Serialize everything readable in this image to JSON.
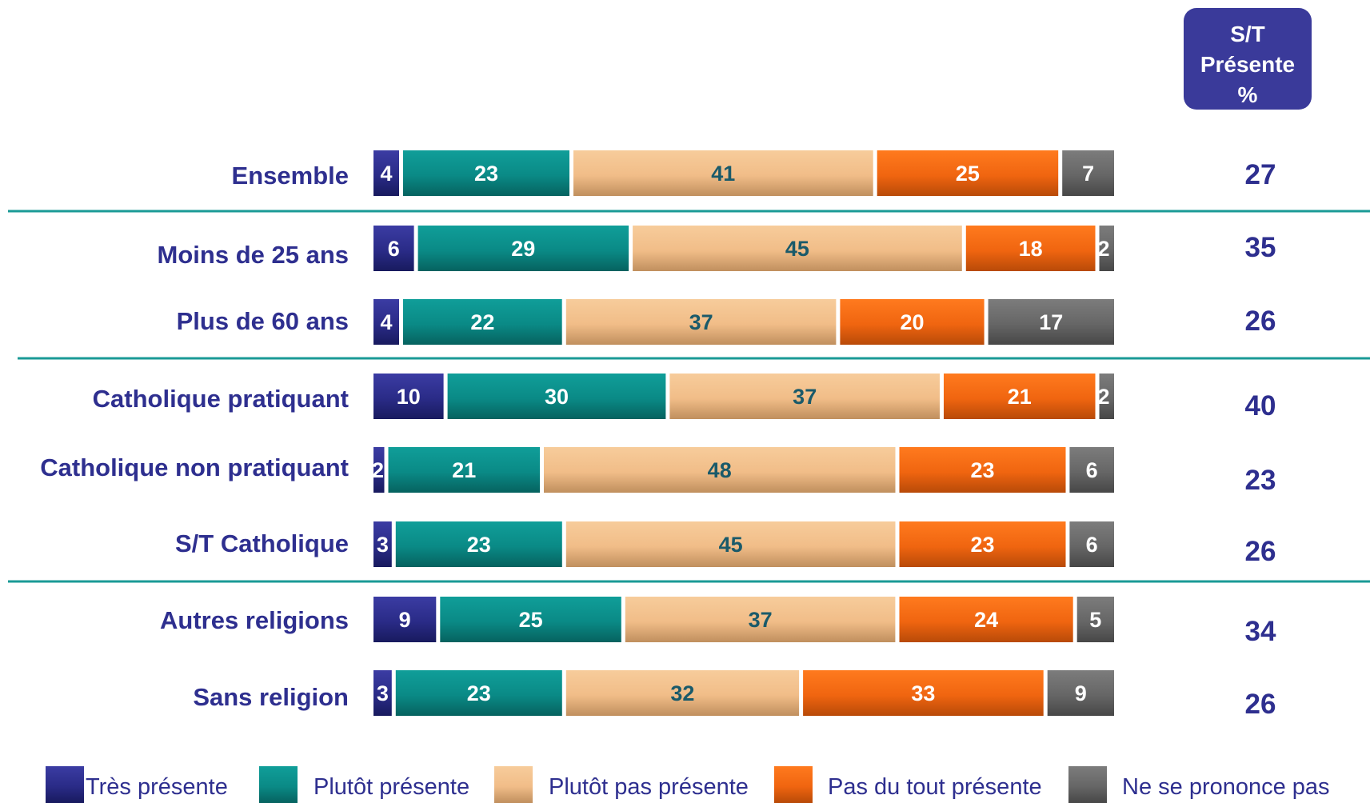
{
  "chart_data": {
    "type": "bar",
    "orientation": "horizontal",
    "stacked": true,
    "xlim": [
      0,
      100
    ],
    "categories": [
      "Ensemble",
      "Moins de 25 ans",
      "Plus de 60 ans",
      "Catholique pratiquant",
      "Catholique non pratiquant",
      "S/T Catholique",
      "Autres religions",
      "Sans religion"
    ],
    "series": [
      {
        "name": "Très présente",
        "color": "#2e2f8f",
        "values": [
          4,
          6,
          4,
          10,
          2,
          3,
          9,
          3
        ]
      },
      {
        "name": "Plutôt présente",
        "color": "#0a8a86",
        "values": [
          23,
          29,
          22,
          30,
          21,
          23,
          25,
          23
        ]
      },
      {
        "name": "Plutôt pas présente",
        "color": "#f0c08e",
        "values": [
          41,
          45,
          37,
          37,
          48,
          45,
          37,
          32
        ]
      },
      {
        "name": "Pas du tout présente",
        "color": "#f26a10",
        "values": [
          25,
          18,
          20,
          21,
          23,
          23,
          24,
          33
        ]
      },
      {
        "name": "Ne se prononce pas",
        "color": "#6e6e6e",
        "values": [
          7,
          2,
          17,
          2,
          6,
          6,
          5,
          9
        ]
      }
    ],
    "summary_column": {
      "header_lines": [
        "S/T",
        "Présente",
        "%"
      ],
      "values": [
        27,
        35,
        26,
        40,
        23,
        26,
        34,
        26
      ]
    },
    "separators_after_rows": [
      0,
      2,
      5
    ],
    "legend_position": "bottom",
    "label_colors": {
      "dark_text": "#1a5a6a",
      "light_text": "#ffffff",
      "separator": "#1a9a96"
    }
  }
}
